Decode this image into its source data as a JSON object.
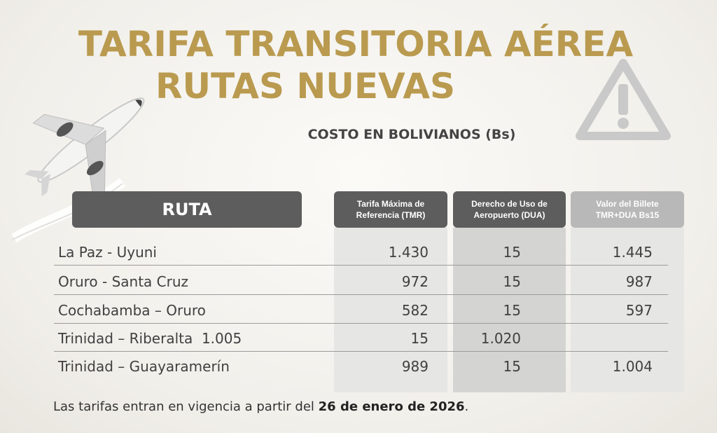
{
  "title_line1": "TARIFA TRANSITORIA AÉREA",
  "title_line2": "RUTAS NUEVAS",
  "subtitle": "COSTO EN BOLIVIANOS (Bs)",
  "headers": {
    "ruta": "RUTA",
    "col1": [
      "Tarifa Máxima de",
      "Referencia (TMR)"
    ],
    "col2": [
      "Derecho de Uso de",
      "Aeropuerto (DUA)"
    ],
    "col3": [
      "Valor del Billete",
      "TMR+DUA Bs15"
    ]
  },
  "rows": [
    {
      "route": "La Paz - Uyuni",
      "tmr": "1.430",
      "dua": "15",
      "total": "1.445"
    },
    {
      "route": "Oruro - Santa Cruz",
      "tmr": "972",
      "dua": "15",
      "total": "987"
    },
    {
      "route": "Cochabamba – Oruro",
      "tmr": "582",
      "dua": "15",
      "total": "597"
    },
    {
      "route": "Trinidad – Riberalta  1.005",
      "tmr": "15",
      "dua": "1.020",
      "total": ""
    },
    {
      "route": "Trinidad – Guayaramerín",
      "tmr": "989",
      "dua": "15",
      "total": "1.004"
    }
  ],
  "note_prefix": "Las tarifas entran en vigencia a partir del ",
  "note_date": "26 de enero de 2026",
  "note_suffix": ".",
  "icons": {
    "airplane": "airplane-icon",
    "warning": "warning-triangle-icon"
  },
  "colors": {
    "title_gold": "#b99a4f",
    "header_dark": "#5d5d5d",
    "header_light": "#b8b8b8"
  }
}
